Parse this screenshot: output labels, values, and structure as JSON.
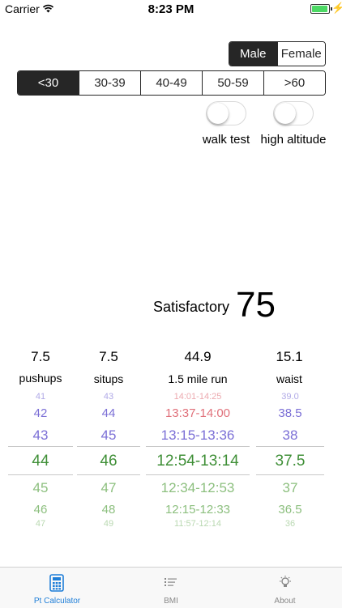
{
  "status": {
    "carrier": "Carrier",
    "time": "8:23 PM"
  },
  "gender": {
    "options": [
      "Male",
      "Female"
    ],
    "selected": 0
  },
  "age": {
    "options": [
      "<30",
      "30-39",
      "40-49",
      "50-59",
      ">60"
    ],
    "selected": 0
  },
  "toggles": {
    "walk_test": "walk test",
    "high_altitude": "high altitude"
  },
  "result": {
    "rating": "Satisfactory",
    "score": "75"
  },
  "columns": [
    {
      "value": "7.5",
      "label": "pushups"
    },
    {
      "value": "7.5",
      "label": "situps"
    },
    {
      "value": "44.9",
      "label": "1.5 mile run"
    },
    {
      "value": "15.1",
      "label": "waist"
    }
  ],
  "pickers": {
    "pushups": [
      "41",
      "42",
      "43",
      "44",
      "45",
      "46",
      "47"
    ],
    "situps": [
      "43",
      "44",
      "45",
      "46",
      "47",
      "48",
      "49"
    ],
    "run": [
      "14:01-14:25",
      "13:37-14:00",
      "13:15-13:36",
      "12:54-13:14",
      "12:34-12:53",
      "12:15-12:33",
      "11:57-12:14"
    ],
    "waist": [
      "39.0",
      "38.5",
      "38",
      "37.5",
      "37",
      "36.5",
      "36"
    ]
  },
  "tabs": {
    "calculator": "Pt Calculator",
    "bmi": "BMI",
    "about": "About"
  },
  "colors": {
    "accent": "#1e7ed8",
    "dark": "#262626",
    "battery": "#4cd964",
    "purple": "#7b6fd6",
    "red": "#e0707a",
    "green": "#3f8f37",
    "light_green": "#8cbf7e"
  }
}
